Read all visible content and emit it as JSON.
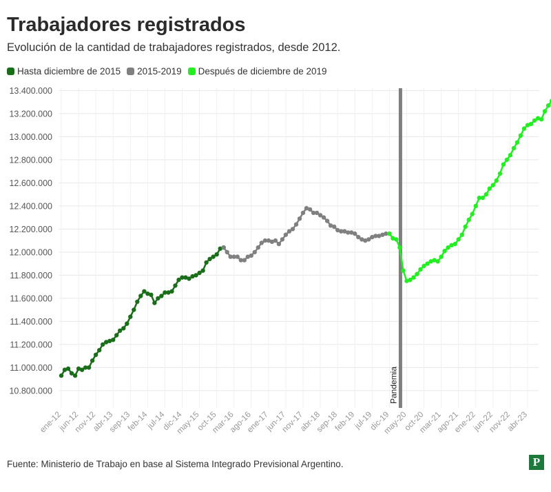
{
  "title": "Trabajadores registrados",
  "subtitle": "Evolución de la cantidad de trabajadores registrados, desde 2012.",
  "legend": [
    {
      "label": "Hasta diciembre de 2015",
      "color": "#1a6e1a"
    },
    {
      "label": "2015-2019",
      "color": "#808080"
    },
    {
      "label": "Después de diciembre de 2019",
      "color": "#22ee22"
    }
  ],
  "source": "Fuente: Ministerio de Trabajo en base al Sistema Integrado Previsional Argentino.",
  "logo": "P",
  "chart_data": {
    "type": "line",
    "title": "Trabajadores registrados",
    "ylim": [
      10650000,
      13420000
    ],
    "y_ticks": [
      10800000,
      11000000,
      11200000,
      11400000,
      11600000,
      11800000,
      12000000,
      12200000,
      12400000,
      12600000,
      12800000,
      13000000,
      13200000,
      13400000
    ],
    "y_tick_labels": [
      "10.800.000",
      "11.000.000",
      "11.200.000",
      "11.400.000",
      "11.600.000",
      "11.800.000",
      "12.000.000",
      "12.200.000",
      "12.400.000",
      "12.600.000",
      "12.800.000",
      "13.000.000",
      "13.200.000",
      "13.400.000"
    ],
    "x_tick_labels": [
      "ene-12",
      "jun-12",
      "nov-12",
      "abr-13",
      "sep-13",
      "feb-14",
      "jul-14",
      "dic-14",
      "may-15",
      "oct-15",
      "mar-16",
      "ago-16",
      "ene-17",
      "jun-17",
      "nov-17",
      "abr-18",
      "sep-18",
      "feb-19",
      "jul-19",
      "dic-19",
      "may-20",
      "oct-20",
      "mar-21",
      "ago-21",
      "ene-22",
      "jun-22",
      "nov-22",
      "abr-23"
    ],
    "annotation": {
      "label": "Pandemia",
      "month": "mar-20",
      "color": "#7f7f7f"
    },
    "grid": true,
    "legend_position": "top-left",
    "series": [
      {
        "name": "Hasta diciembre de 2015",
        "color": "#1a6e1a",
        "start": "ene-12",
        "values": [
          10930000,
          10980000,
          10990000,
          10950000,
          10930000,
          10990000,
          10980000,
          11000000,
          11000000,
          11060000,
          11110000,
          11150000,
          11200000,
          11220000,
          11230000,
          11240000,
          11280000,
          11320000,
          11340000,
          11380000,
          11440000,
          11500000,
          11570000,
          11620000,
          11660000,
          11640000,
          11630000,
          11560000,
          11600000,
          11620000,
          11650000,
          11650000,
          11660000,
          11710000,
          11760000,
          11780000,
          11780000,
          11770000,
          11790000,
          11800000,
          11820000,
          11840000,
          11910000,
          11940000,
          11960000,
          11980000,
          12030000,
          12040000
        ]
      },
      {
        "name": "2015-2019",
        "color": "#808080",
        "start": "dic-15",
        "values": [
          12040000,
          12000000,
          11960000,
          11960000,
          11960000,
          11930000,
          11930000,
          11960000,
          11970000,
          12000000,
          12040000,
          12080000,
          12100000,
          12100000,
          12090000,
          12100000,
          12070000,
          12110000,
          12150000,
          12180000,
          12200000,
          12240000,
          12290000,
          12340000,
          12380000,
          12370000,
          12340000,
          12340000,
          12320000,
          12300000,
          12270000,
          12230000,
          12220000,
          12190000,
          12180000,
          12180000,
          12170000,
          12170000,
          12160000,
          12130000,
          12110000,
          12100000,
          12110000,
          12130000,
          12140000,
          12140000,
          12150000,
          12160000,
          12160000
        ]
      },
      {
        "name": "Después de diciembre de 2019",
        "color": "#22ee22",
        "start": "dic-19",
        "values": [
          12160000,
          12120000,
          12110000,
          12040000,
          11840000,
          11750000,
          11760000,
          11780000,
          11810000,
          11850000,
          11880000,
          11900000,
          11920000,
          11930000,
          11920000,
          11960000,
          12010000,
          12040000,
          12060000,
          12070000,
          12110000,
          12150000,
          12220000,
          12280000,
          12330000,
          12400000,
          12470000,
          12470000,
          12500000,
          12550000,
          12580000,
          12620000,
          12680000,
          12760000,
          12800000,
          12840000,
          12900000,
          12950000,
          13010000,
          13070000,
          13100000,
          13110000,
          13140000,
          13160000,
          13150000,
          13220000,
          13270000,
          13310000,
          13360000
        ]
      }
    ]
  }
}
